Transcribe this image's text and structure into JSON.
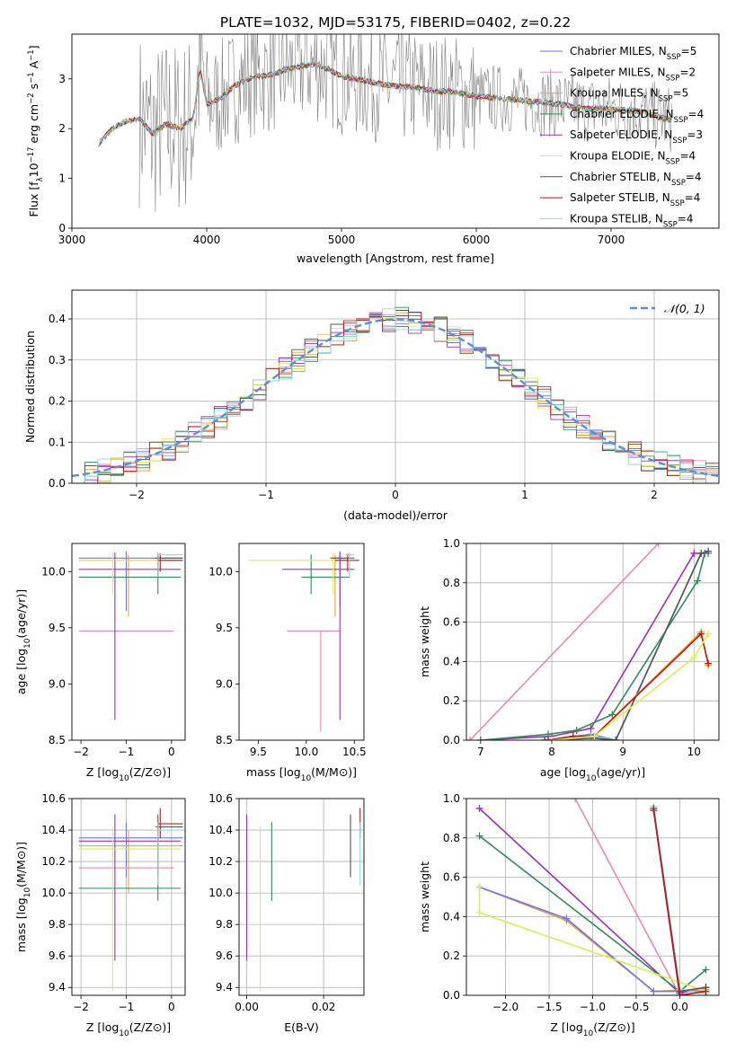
{
  "title": "PLATE=1032, MJD=53175, FIBERID=0402, z=0.22",
  "colors": {
    "Chabrier MILES": "#6677ee",
    "Salpeter MILES": "#e888b8",
    "Kroupa MILES": "#f0a030",
    "Chabrier ELODIE": "#2e8b57",
    "Salpeter ELODIE": "#9b30c0",
    "Kroupa ELODIE": "#d8ee55",
    "Chabrier STELIB": "#555555",
    "Salpeter STELIB": "#c01818",
    "Kroupa STELIB": "#88dddd",
    "normal": "#5b8fdc"
  },
  "chart_data": [
    {
      "id": "spectrum",
      "type": "line",
      "xlabel": "wavelength [Angstrom, rest frame]",
      "ylabel": "Flux [f_λ 10^-17 erg cm^-2 s^-1 A^-1]",
      "xlim": [
        3000,
        7800
      ],
      "ylim": [
        0,
        3.9
      ],
      "xticks": [
        "3000",
        "4000",
        "5000",
        "6000",
        "7000"
      ],
      "yticks": [
        "0",
        "1",
        "2",
        "3"
      ],
      "legend_position": "top-right",
      "legend": [
        {
          "model": "Chabrier MILES",
          "label": "Chabrier MILES, N",
          "nssp": "=5"
        },
        {
          "model": "Salpeter MILES",
          "label": "Salpeter MILES, N",
          "nssp": "=2"
        },
        {
          "model": "Kroupa MILES",
          "label": "Kroupa MILES, N",
          "nssp": "=5"
        },
        {
          "model": "Chabrier ELODIE",
          "label": "Chabrier ELODIE, N",
          "nssp": "=4"
        },
        {
          "model": "Salpeter ELODIE",
          "label": "Salpeter ELODIE, N",
          "nssp": "=3"
        },
        {
          "model": "Kroupa ELODIE",
          "label": "Kroupa ELODIE, N",
          "nssp": "=4"
        },
        {
          "model": "Chabrier STELIB",
          "label": "Chabrier STELIB, N",
          "nssp": "=4"
        },
        {
          "model": "Salpeter STELIB",
          "label": "Salpeter STELIB, N",
          "nssp": "=4"
        },
        {
          "model": "Kroupa STELIB",
          "label": "Kroupa STELIB, N",
          "nssp": "=4"
        }
      ],
      "nssp_subscript": "SSP",
      "continuum": [
        [
          3200,
          1.7
        ],
        [
          3300,
          2.0
        ],
        [
          3400,
          2.15
        ],
        [
          3500,
          2.2
        ],
        [
          3600,
          1.9
        ],
        [
          3700,
          2.1
        ],
        [
          3800,
          2.0
        ],
        [
          3900,
          2.2
        ],
        [
          3950,
          3.2
        ],
        [
          4000,
          2.5
        ],
        [
          4100,
          2.6
        ],
        [
          4200,
          2.85
        ],
        [
          4300,
          3.0
        ],
        [
          4400,
          3.05
        ],
        [
          4500,
          3.1
        ],
        [
          4600,
          3.2
        ],
        [
          4700,
          3.25
        ],
        [
          4800,
          3.3
        ],
        [
          4900,
          3.2
        ],
        [
          5000,
          3.05
        ],
        [
          5100,
          3.0
        ],
        [
          5200,
          2.95
        ],
        [
          5300,
          2.9
        ],
        [
          5400,
          2.85
        ],
        [
          5500,
          2.85
        ],
        [
          5600,
          2.8
        ],
        [
          5700,
          2.75
        ],
        [
          5800,
          2.75
        ],
        [
          5900,
          2.7
        ],
        [
          6000,
          2.65
        ],
        [
          6200,
          2.6
        ],
        [
          6400,
          2.55
        ],
        [
          6600,
          2.5
        ],
        [
          6800,
          2.4
        ],
        [
          7000,
          2.4
        ],
        [
          7200,
          2.35
        ],
        [
          7400,
          2.2
        ],
        [
          7500,
          2.15
        ]
      ]
    },
    {
      "id": "residuals",
      "type": "histogram",
      "xlabel": "(data-model)/error",
      "ylabel": "Normed distribution",
      "xlim": [
        -2.5,
        2.5
      ],
      "ylim": [
        0,
        0.47
      ],
      "xticks": [
        "−2",
        "−1",
        "0",
        "1",
        "2"
      ],
      "yticks": [
        "0.0",
        "0.1",
        "0.2",
        "0.3",
        "0.4"
      ],
      "legend": "𝒩(0, 1)",
      "legend_position": "top-right",
      "bin_edges_start": -2.5,
      "bin_width": 0.1,
      "grid": true
    },
    {
      "id": "age-vs-Z",
      "type": "errorbar",
      "xlabel": "Z [log10(Z/Z⊙)]",
      "ylabel": "age  [log10(age/yr)]",
      "xlim": [
        -2.2,
        0.3
      ],
      "ylim": [
        8.5,
        10.25
      ],
      "xticks": [
        "−2",
        "−1",
        "0"
      ],
      "yticks": [
        "8.5",
        "9.0",
        "9.5",
        "10.0"
      ],
      "points": [
        {
          "model": "Chabrier MILES",
          "x": -1.0,
          "y": 10.12,
          "xe": [
            -2.05,
            0.25
          ],
          "ye": [
            9.65,
            10.18
          ]
        },
        {
          "model": "Salpeter MILES",
          "x": -1.1,
          "y": 9.47,
          "xe": [
            -2.05,
            0.05
          ],
          "ye": [
            9.47,
            9.47
          ]
        },
        {
          "model": "Kroupa MILES",
          "x": -0.95,
          "y": 10.1,
          "xe": [
            -2.05,
            0.25
          ],
          "ye": [
            9.6,
            10.15
          ]
        },
        {
          "model": "Chabrier ELODIE",
          "x": -0.3,
          "y": 9.95,
          "xe": [
            -2.05,
            0.2
          ],
          "ye": [
            9.8,
            10.15
          ]
        },
        {
          "model": "Salpeter ELODIE",
          "x": -1.25,
          "y": 10.02,
          "xe": [
            -2.05,
            0.2
          ],
          "ye": [
            8.68,
            10.17
          ]
        },
        {
          "model": "Kroupa ELODIE",
          "x": -1.3,
          "y": 10.1,
          "xe": [
            -2.05,
            0.2
          ],
          "ye": [
            9.8,
            10.17
          ]
        },
        {
          "model": "Chabrier STELIB",
          "x": -0.3,
          "y": 10.12,
          "xe": [
            -0.35,
            0.25
          ],
          "ye": [
            9.95,
            10.17
          ]
        },
        {
          "model": "Salpeter STELIB",
          "x": -0.25,
          "y": 10.1,
          "xe": [
            -0.3,
            0.25
          ],
          "ye": [
            10.0,
            10.16
          ]
        },
        {
          "model": "Kroupa STELIB",
          "x": -0.3,
          "y": 10.15,
          "xe": [
            -0.3,
            0.25
          ],
          "ye": [
            9.95,
            10.17
          ]
        }
      ]
    },
    {
      "id": "age-vs-mass",
      "type": "errorbar",
      "xlabel": "mass [log10(M/M⊙)]",
      "ylabel": "",
      "xlim": [
        9.3,
        10.6
      ],
      "ylim": [
        8.5,
        10.25
      ],
      "xticks": [
        "9.5",
        "10.0",
        "10.5"
      ],
      "yticks": [
        "8.5",
        "9.0",
        "9.5",
        "10.0"
      ],
      "points": [
        {
          "model": "Chabrier MILES",
          "x": 10.35,
          "y": 10.12,
          "xe": [
            10.25,
            10.45
          ],
          "ye": [
            9.7,
            10.18
          ]
        },
        {
          "model": "Salpeter MILES",
          "x": 10.15,
          "y": 9.47,
          "xe": [
            9.8,
            10.35
          ],
          "ye": [
            8.58,
            9.47
          ]
        },
        {
          "model": "Kroupa MILES",
          "x": 10.3,
          "y": 10.1,
          "xe": [
            10.25,
            10.45
          ],
          "ye": [
            9.6,
            10.15
          ]
        },
        {
          "model": "Chabrier ELODIE",
          "x": 10.05,
          "y": 9.95,
          "xe": [
            9.95,
            10.45
          ],
          "ye": [
            9.8,
            10.15
          ]
        },
        {
          "model": "Salpeter ELODIE",
          "x": 10.35,
          "y": 10.02,
          "xe": [
            9.75,
            10.5
          ],
          "ye": [
            8.68,
            10.17
          ]
        },
        {
          "model": "Kroupa ELODIE",
          "x": 10.28,
          "y": 10.1,
          "xe": [
            9.4,
            10.45
          ],
          "ye": [
            9.8,
            10.17
          ]
        },
        {
          "model": "Chabrier STELIB",
          "x": 10.45,
          "y": 10.12,
          "xe": [
            10.25,
            10.5
          ],
          "ye": [
            9.95,
            10.17
          ]
        },
        {
          "model": "Salpeter STELIB",
          "x": 10.43,
          "y": 10.1,
          "xe": [
            10.3,
            10.55
          ],
          "ye": [
            10.0,
            10.16
          ]
        },
        {
          "model": "Kroupa STELIB",
          "x": 10.45,
          "y": 10.15,
          "xe": [
            10.4,
            10.5
          ],
          "ye": [
            9.95,
            10.17
          ]
        }
      ]
    },
    {
      "id": "weight-vs-age",
      "type": "line",
      "xlabel": "age  [log10(age/yr)]",
      "ylabel": "mass weight",
      "xlim": [
        6.8,
        10.35
      ],
      "ylim": [
        0,
        1
      ],
      "xticks": [
        "7",
        "8",
        "9",
        "10"
      ],
      "yticks": [
        "0.0",
        "0.2",
        "0.4",
        "0.6",
        "0.8",
        "1.0"
      ],
      "grid": true,
      "series": [
        {
          "model": "Salpeter MILES",
          "x": [
            6.85,
            9.5
          ],
          "y": [
            0.0,
            1.0
          ]
        },
        {
          "model": "Salpeter ELODIE",
          "x": [
            7.0,
            8.0,
            8.55,
            10.0,
            10.15
          ],
          "y": [
            0.0,
            0.02,
            0.06,
            0.95,
            0.95
          ]
        },
        {
          "model": "Chabrier ELODIE",
          "x": [
            7.0,
            7.95,
            8.35,
            8.85,
            10.05,
            10.15
          ],
          "y": [
            0.0,
            0.03,
            0.05,
            0.13,
            0.81,
            0.95
          ]
        },
        {
          "model": "Chabrier MILES",
          "x": [
            7.9,
            8.55,
            8.9,
            10.1,
            10.2
          ],
          "y": [
            0.0,
            0.03,
            0.0,
            0.95,
            0.95
          ]
        },
        {
          "model": "Kroupa STELIB",
          "x": [
            7.9,
            8.55,
            8.9,
            10.1,
            10.2
          ],
          "y": [
            0.0,
            0.02,
            0.0,
            0.95,
            0.96
          ]
        },
        {
          "model": "Chabrier STELIB",
          "x": [
            7.9,
            8.6,
            8.9,
            10.1,
            10.2
          ],
          "y": [
            0.0,
            0.01,
            0.0,
            0.95,
            0.96
          ]
        },
        {
          "model": "Kroupa MILES",
          "x": [
            7.95,
            8.3,
            8.6,
            10.1,
            10.2
          ],
          "y": [
            0.0,
            0.02,
            0.02,
            0.55,
            0.38
          ]
        },
        {
          "model": "Salpeter STELIB",
          "x": [
            7.95,
            8.3,
            8.6,
            10.1,
            10.2
          ],
          "y": [
            0.0,
            0.02,
            0.02,
            0.54,
            0.39
          ]
        },
        {
          "model": "Kroupa ELODIE",
          "x": [
            8.0,
            8.6,
            10.0,
            10.2
          ],
          "y": [
            0.0,
            0.02,
            0.42,
            0.54
          ]
        }
      ]
    },
    {
      "id": "mass-vs-Z",
      "type": "errorbar",
      "xlabel": "Z [log10(Z/Z⊙)]",
      "ylabel": "mass [log10(M/M⊙)]",
      "xlim": [
        -2.2,
        0.3
      ],
      "ylim": [
        9.35,
        10.6
      ],
      "xticks": [
        "−2",
        "−1",
        "0"
      ],
      "yticks": [
        "9.4",
        "9.6",
        "9.8",
        "10.0",
        "10.2",
        "10.4",
        "10.6"
      ],
      "grid": true,
      "points": [
        {
          "model": "Chabrier MILES",
          "x": -1.0,
          "y": 10.35,
          "xe": [
            -2.05,
            0.25
          ],
          "ye": [
            10.1,
            10.45
          ]
        },
        {
          "model": "Salpeter MILES",
          "x": -1.1,
          "y": 10.16,
          "xe": [
            -2.05,
            0.05
          ],
          "ye": [
            10.16,
            10.16
          ]
        },
        {
          "model": "Kroupa MILES",
          "x": -0.95,
          "y": 10.3,
          "xe": [
            -2.05,
            0.25
          ],
          "ye": [
            10.0,
            10.4
          ]
        },
        {
          "model": "Chabrier ELODIE",
          "x": -0.3,
          "y": 10.03,
          "xe": [
            -2.05,
            0.2
          ],
          "ye": [
            9.95,
            10.45
          ]
        },
        {
          "model": "Salpeter ELODIE",
          "x": -1.25,
          "y": 10.33,
          "xe": [
            -2.05,
            0.2
          ],
          "ye": [
            9.57,
            10.5
          ]
        },
        {
          "model": "Kroupa ELODIE",
          "x": -1.3,
          "y": 10.28,
          "xe": [
            -2.05,
            0.2
          ],
          "ye": [
            9.38,
            10.42
          ]
        },
        {
          "model": "Chabrier STELIB",
          "x": -0.3,
          "y": 10.42,
          "xe": [
            -0.35,
            0.25
          ],
          "ye": [
            10.1,
            10.5
          ]
        },
        {
          "model": "Salpeter STELIB",
          "x": -0.25,
          "y": 10.44,
          "xe": [
            -0.3,
            0.25
          ],
          "ye": [
            10.35,
            10.54
          ]
        },
        {
          "model": "Kroupa STELIB",
          "x": -0.3,
          "y": 10.4,
          "xe": [
            -0.3,
            0.25
          ],
          "ye": [
            10.05,
            10.45
          ]
        }
      ]
    },
    {
      "id": "mass-vs-EBV",
      "type": "errorbar",
      "xlabel": "E(B-V)",
      "ylabel": "",
      "xlim": [
        -0.002,
        0.0305
      ],
      "ylim": [
        9.35,
        10.6
      ],
      "xticks": [
        "0.00",
        "0.02"
      ],
      "yticks": [
        "9.4",
        "9.6",
        "9.8",
        "10.0",
        "10.2",
        "10.4",
        "10.6"
      ],
      "grid": true,
      "points": [
        {
          "model": "Salpeter ELODIE",
          "x": 0.0,
          "y": 10.3,
          "ye": [
            9.57,
            10.5
          ]
        },
        {
          "model": "Kroupa ELODIE",
          "x": 0.0035,
          "y": 10.3,
          "ye": [
            9.38,
            10.42
          ]
        },
        {
          "model": "Chabrier ELODIE",
          "x": 0.0065,
          "y": 10.2,
          "ye": [
            9.95,
            10.45
          ]
        },
        {
          "model": "Chabrier STELIB",
          "x": 0.027,
          "y": 10.3,
          "ye": [
            10.1,
            10.5
          ]
        },
        {
          "model": "Salpeter STELIB",
          "x": 0.0295,
          "y": 10.44,
          "ye": [
            10.35,
            10.54
          ]
        },
        {
          "model": "Kroupa STELIB",
          "x": 0.0295,
          "y": 10.3,
          "ye": [
            10.05,
            10.45
          ]
        }
      ]
    },
    {
      "id": "weight-vs-Z",
      "type": "line",
      "xlabel": "Z [log10(Z/Z⊙)]",
      "ylabel": "mass weight",
      "xlim": [
        -2.45,
        0.45
      ],
      "ylim": [
        0,
        1
      ],
      "xticks": [
        "−2.0",
        "−1.5",
        "−1.0",
        "−0.5",
        "0.0"
      ],
      "yticks": [
        "0.0",
        "0.2",
        "0.4",
        "0.6",
        "0.8",
        "1.0"
      ],
      "grid": true,
      "series": [
        {
          "model": "Salpeter MILES",
          "x": -1.2,
          "y": 1.0,
          "x2": 0.0,
          "y2": 0.0
        },
        {
          "model": "Salpeter ELODIE",
          "x": [
            -2.3,
            0.0,
            0.3
          ],
          "y": [
            0.95,
            0.01,
            0.04
          ]
        },
        {
          "model": "Chabrier ELODIE",
          "x": [
            -2.3,
            0.0,
            0.3
          ],
          "y": [
            0.81,
            0.02,
            0.13
          ]
        },
        {
          "model": "Kroupa MILES",
          "x": [
            -2.3,
            -1.3,
            -0.3,
            0.3
          ],
          "y": [
            0.55,
            0.38,
            0.02,
            0.03
          ]
        },
        {
          "model": "Chabrier MILES",
          "x": [
            -2.3,
            -1.3,
            -0.3,
            0.3
          ],
          "y": [
            0.55,
            0.39,
            0.02,
            0.02
          ]
        },
        {
          "model": "Kroupa ELODIE",
          "x": [
            -2.3,
            -2.3,
            0.3
          ],
          "y": [
            0.55,
            0.42,
            0.02
          ]
        },
        {
          "model": "Kroupa STELIB",
          "x": [
            -0.3,
            0.0,
            0.3
          ],
          "y": [
            0.96,
            0.03,
            0.01
          ]
        },
        {
          "model": "Chabrier STELIB",
          "x": [
            -0.3,
            0.0,
            0.3
          ],
          "y": [
            0.95,
            0.02,
            0.04
          ]
        },
        {
          "model": "Salpeter STELIB",
          "x": [
            -0.3,
            0.0,
            0.3
          ],
          "y": [
            0.94,
            0.0,
            0.02
          ]
        }
      ]
    }
  ]
}
